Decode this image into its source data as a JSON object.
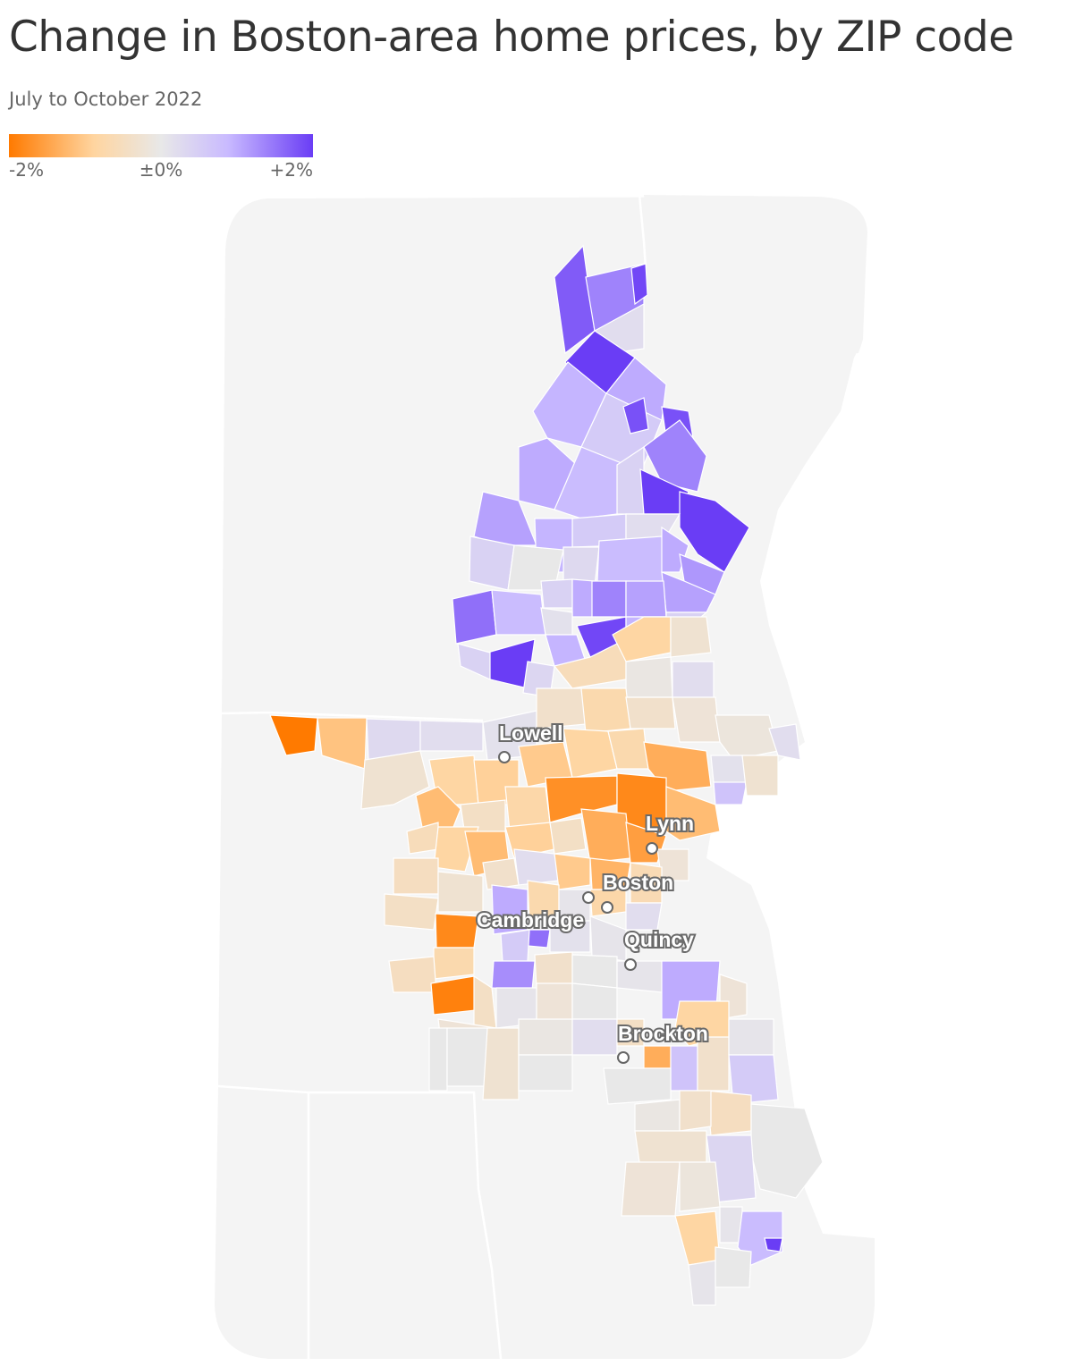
{
  "title": "Change in Boston-area home prices, by ZIP code",
  "subtitle": "July to October 2022",
  "legend": {
    "ticks": [
      "-2%",
      "±0%",
      "+2%"
    ],
    "colors": {
      "neg": "#ff7a00",
      "neg_mid": "#ffd5a0",
      "zero": "#e8e8e8",
      "pos_mid": "#c9baff",
      "pos": "#6a3df5"
    }
  },
  "map": {
    "background_color": "#f4f4f4",
    "cities": [
      {
        "id": "lowell",
        "name": "Lowell"
      },
      {
        "id": "lynn",
        "name": "Lynn"
      },
      {
        "id": "boston",
        "name": "Boston"
      },
      {
        "id": "cambridge",
        "name": "Cambridge"
      },
      {
        "id": "quincy",
        "name": "Quincy"
      },
      {
        "id": "brockton",
        "name": "Brockton"
      }
    ]
  }
}
